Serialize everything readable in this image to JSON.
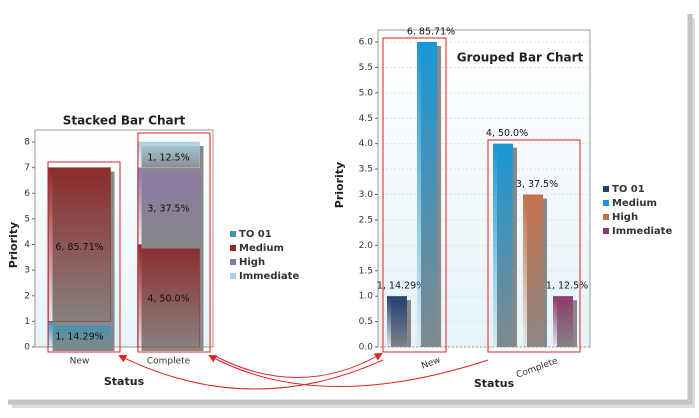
{
  "chart_data": [
    {
      "type": "bar",
      "stacked": true,
      "title": "Stacked Bar Chart",
      "x_label": "Status",
      "y_label": "Priority",
      "categories": [
        "New",
        "Complete"
      ],
      "series": [
        {
          "name": "TO 01",
          "color": "#3f93b8",
          "values": [
            1,
            null
          ],
          "value_labels": [
            "1, 14.29%",
            null
          ]
        },
        {
          "name": "Medium",
          "color": "#8c2b2b",
          "values": [
            6,
            4
          ],
          "value_labels": [
            "6, 85.71%",
            "4, 50.0%"
          ]
        },
        {
          "name": "High",
          "color": "#8a7aa6",
          "values": [
            null,
            3
          ],
          "value_labels": [
            null,
            "3, 37.5%"
          ]
        },
        {
          "name": "Immediate",
          "color": "#a9cfe0",
          "values": [
            null,
            1
          ],
          "value_labels": [
            null,
            "1, 12.5%"
          ]
        }
      ],
      "ylim": [
        0,
        8
      ],
      "yticks": [
        0,
        1,
        2,
        3,
        4,
        5,
        6,
        7,
        8
      ],
      "grid": false,
      "legend": "right"
    },
    {
      "type": "bar",
      "stacked": false,
      "title": "Grouped Bar Chart",
      "x_label": "Status",
      "y_label": "Priority",
      "categories": [
        "New",
        "Complete"
      ],
      "series": [
        {
          "name": "TO 01",
          "color": "#1f3f6e",
          "values": [
            1,
            null
          ],
          "value_labels": [
            "1, 14.29%",
            null
          ]
        },
        {
          "name": "Medium",
          "color": "#1a98d6",
          "values": [
            6,
            4
          ],
          "value_labels": [
            "6, 85.71%",
            "4, 50.0%"
          ]
        },
        {
          "name": "High",
          "color": "#c4714a",
          "values": [
            null,
            3
          ],
          "value_labels": [
            null,
            "3, 37.5%"
          ]
        },
        {
          "name": "Immediate",
          "color": "#8c3a6c",
          "values": [
            null,
            1
          ],
          "value_labels": [
            null,
            "1, 12.5%"
          ]
        }
      ],
      "ylim": [
        0,
        6
      ],
      "yticks": [
        {
          "value": 0,
          "label": "0.0"
        },
        {
          "value": 0.5,
          "label": "0.5"
        },
        {
          "value": 1,
          "label": "1.0"
        },
        {
          "value": 1.5,
          "label": "1.5"
        },
        {
          "value": 2,
          "label": "2.0"
        },
        {
          "value": 2.5,
          "label": "2.5"
        },
        {
          "value": 3,
          "label": "3.0"
        },
        {
          "value": 3.5,
          "label": "3.5"
        },
        {
          "value": 4,
          "label": "4.0"
        },
        {
          "value": 4.5,
          "label": "4.5"
        },
        {
          "value": 5,
          "label": "5.0"
        },
        {
          "value": 5.5,
          "label": "5.5"
        },
        {
          "value": 6,
          "label": "6.0"
        }
      ],
      "grid": true,
      "legend": "right"
    }
  ]
}
